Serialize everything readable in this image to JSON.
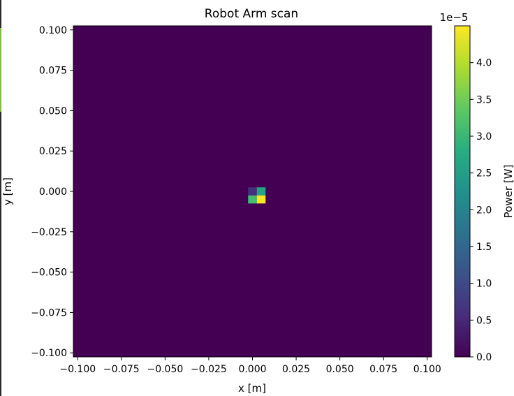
{
  "chart_data": {
    "type": "heatmap",
    "title": "Robot Arm scan",
    "xlabel": "x [m]",
    "ylabel": "y [m]",
    "xlim": [
      -0.1025,
      0.1025
    ],
    "ylim": [
      -0.1025,
      0.1025
    ],
    "xticks": [
      -0.1,
      -0.075,
      -0.05,
      -0.025,
      0.0,
      0.025,
      0.05,
      0.075,
      0.1
    ],
    "xtick_labels": [
      "−0.100",
      "−0.075",
      "−0.050",
      "−0.025",
      "0.000",
      "0.025",
      "0.050",
      "0.075",
      "0.100"
    ],
    "yticks": [
      0.1,
      0.075,
      0.05,
      0.025,
      0.0,
      -0.025,
      -0.05,
      -0.075,
      -0.1
    ],
    "ytick_labels": [
      "0.100",
      "0.075",
      "0.050",
      "0.025",
      "0.000",
      "−0.025",
      "−0.050",
      "−0.075",
      "−0.100"
    ],
    "background_value": 0.0,
    "cell_size": 0.005,
    "cells": [
      {
        "x": 0.0,
        "y": 0.0,
        "value": 6e-06
      },
      {
        "x": 0.005,
        "y": 0.0,
        "value": 2.6e-05
      },
      {
        "x": 0.0,
        "y": -0.005,
        "value": 3.1e-05
      },
      {
        "x": 0.005,
        "y": -0.005,
        "value": 4.5e-05
      }
    ],
    "colormap": "viridis",
    "colorbar": {
      "label": "Power [W]",
      "range": [
        0.0,
        4.5e-05
      ],
      "ticks": [
        0.0,
        0.5,
        1.0,
        1.5,
        2.0,
        2.5,
        3.0,
        3.5,
        4.0
      ],
      "tick_labels": [
        "0.0",
        "0.5",
        "1.0",
        "1.5",
        "2.0",
        "2.5",
        "3.0",
        "3.5",
        "4.0"
      ],
      "scale_label": "1e−5",
      "scale": 1e-05
    }
  },
  "colors": {
    "background_cell": "#440154",
    "axis": "#000000"
  }
}
